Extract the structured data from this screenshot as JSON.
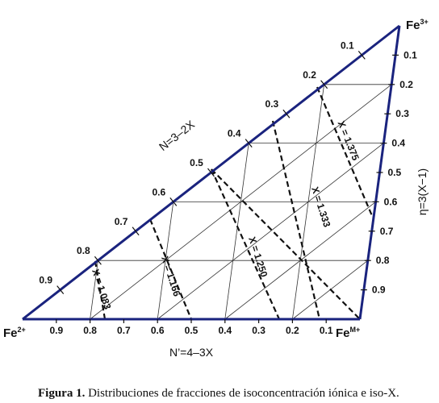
{
  "vertices": [
    {
      "symbol": "Fe",
      "charge": "3+"
    },
    {
      "symbol": "Fe",
      "charge": "2+"
    },
    {
      "symbol": "Fe",
      "charge": "M+"
    }
  ],
  "axes": {
    "left": {
      "title": "N=3–2X",
      "ticks": [
        "0.1",
        "0.2",
        "0.3",
        "0.4",
        "0.5",
        "0.6",
        "0.7",
        "0.8",
        "0.9"
      ]
    },
    "right": {
      "title": "η=3(X−1)",
      "ticks": [
        "0.1",
        "0.2",
        "0.3",
        "0.4",
        "0.5",
        "0.6",
        "0.7",
        "0.8",
        "0.9"
      ]
    },
    "bottom": {
      "title": "N’=4–3X",
      "ticks": [
        "0.9",
        "0.8",
        "0.7",
        "0.6",
        "0.5",
        "0.4",
        "0.3",
        "0.2",
        "0.1"
      ]
    }
  },
  "iso_x": [
    "X = 1.083",
    "X = 1.166",
    "X = 1.250",
    "X = 1.333",
    "X = 1.375"
  ],
  "caption": {
    "label": "Figura 1.",
    "text": "Distribuciones de fracciones de isoconcentración iónica e iso-X."
  }
}
